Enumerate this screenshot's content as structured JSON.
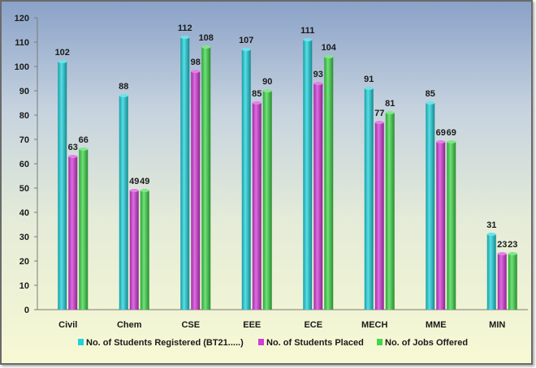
{
  "chart_data": {
    "type": "bar",
    "categories": [
      "Civil",
      "Chem",
      "CSE",
      "EEE",
      "ECE",
      "MECH",
      "MME",
      "MIN"
    ],
    "series": [
      {
        "name": "No. of Students Registered (BT21.....)",
        "color": "#1fd3dc",
        "values": [
          102,
          88,
          112,
          107,
          111,
          91,
          85,
          31
        ]
      },
      {
        "name": "No. of Students Placed",
        "color": "#d43bd8",
        "values": [
          63,
          49,
          98,
          85,
          93,
          77,
          69,
          23
        ]
      },
      {
        "name": "No. of Jobs Offered",
        "color": "#3fd84a",
        "values": [
          66,
          49,
          108,
          90,
          104,
          81,
          69,
          23
        ]
      }
    ],
    "ylim": [
      0,
      120
    ],
    "yticks": [
      0,
      10,
      20,
      30,
      40,
      50,
      60,
      70,
      80,
      90,
      100,
      110,
      120
    ],
    "grid": false,
    "legend_position": "bottom",
    "data_labels": true
  }
}
